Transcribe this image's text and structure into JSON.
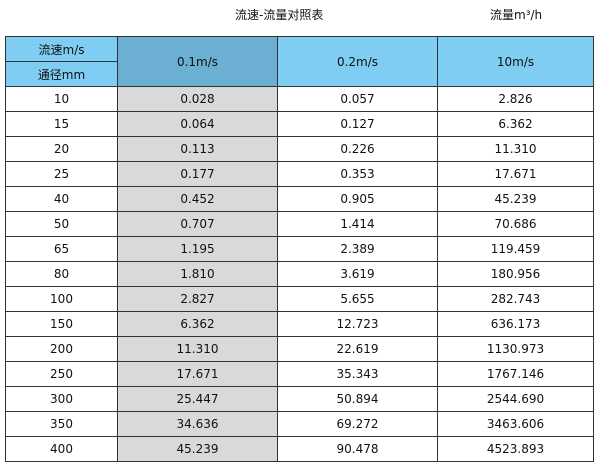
{
  "title": "流速-流量对照表",
  "unit_label": "流量m³/h",
  "header": {
    "velocity_label": "流速m/s",
    "diameter_label": "通径mm",
    "columns": [
      "0.1m/s",
      "0.2m/s",
      "10m/s"
    ]
  },
  "colors": {
    "header": "#7fcdf3",
    "header_selected": "#6bb0d3",
    "highlight_column": "#d9d9d9"
  },
  "rows": [
    [
      "10",
      "0.028",
      "0.057",
      "2.826"
    ],
    [
      "15",
      "0.064",
      "0.127",
      "6.362"
    ],
    [
      "20",
      "0.113",
      "0.226",
      "11.310"
    ],
    [
      "25",
      "0.177",
      "0.353",
      "17.671"
    ],
    [
      "40",
      "0.452",
      "0.905",
      "45.239"
    ],
    [
      "50",
      "0.707",
      "1.414",
      "70.686"
    ],
    [
      "65",
      "1.195",
      "2.389",
      "119.459"
    ],
    [
      "80",
      "1.810",
      "3.619",
      "180.956"
    ],
    [
      "100",
      "2.827",
      "5.655",
      "282.743"
    ],
    [
      "150",
      "6.362",
      "12.723",
      "636.173"
    ],
    [
      "200",
      "11.310",
      "22.619",
      "1130.973"
    ],
    [
      "250",
      "17.671",
      "35.343",
      "1767.146"
    ],
    [
      "300",
      "25.447",
      "50.894",
      "2544.690"
    ],
    [
      "350",
      "34.636",
      "69.272",
      "3463.606"
    ],
    [
      "400",
      "45.239",
      "90.478",
      "4523.893"
    ]
  ]
}
